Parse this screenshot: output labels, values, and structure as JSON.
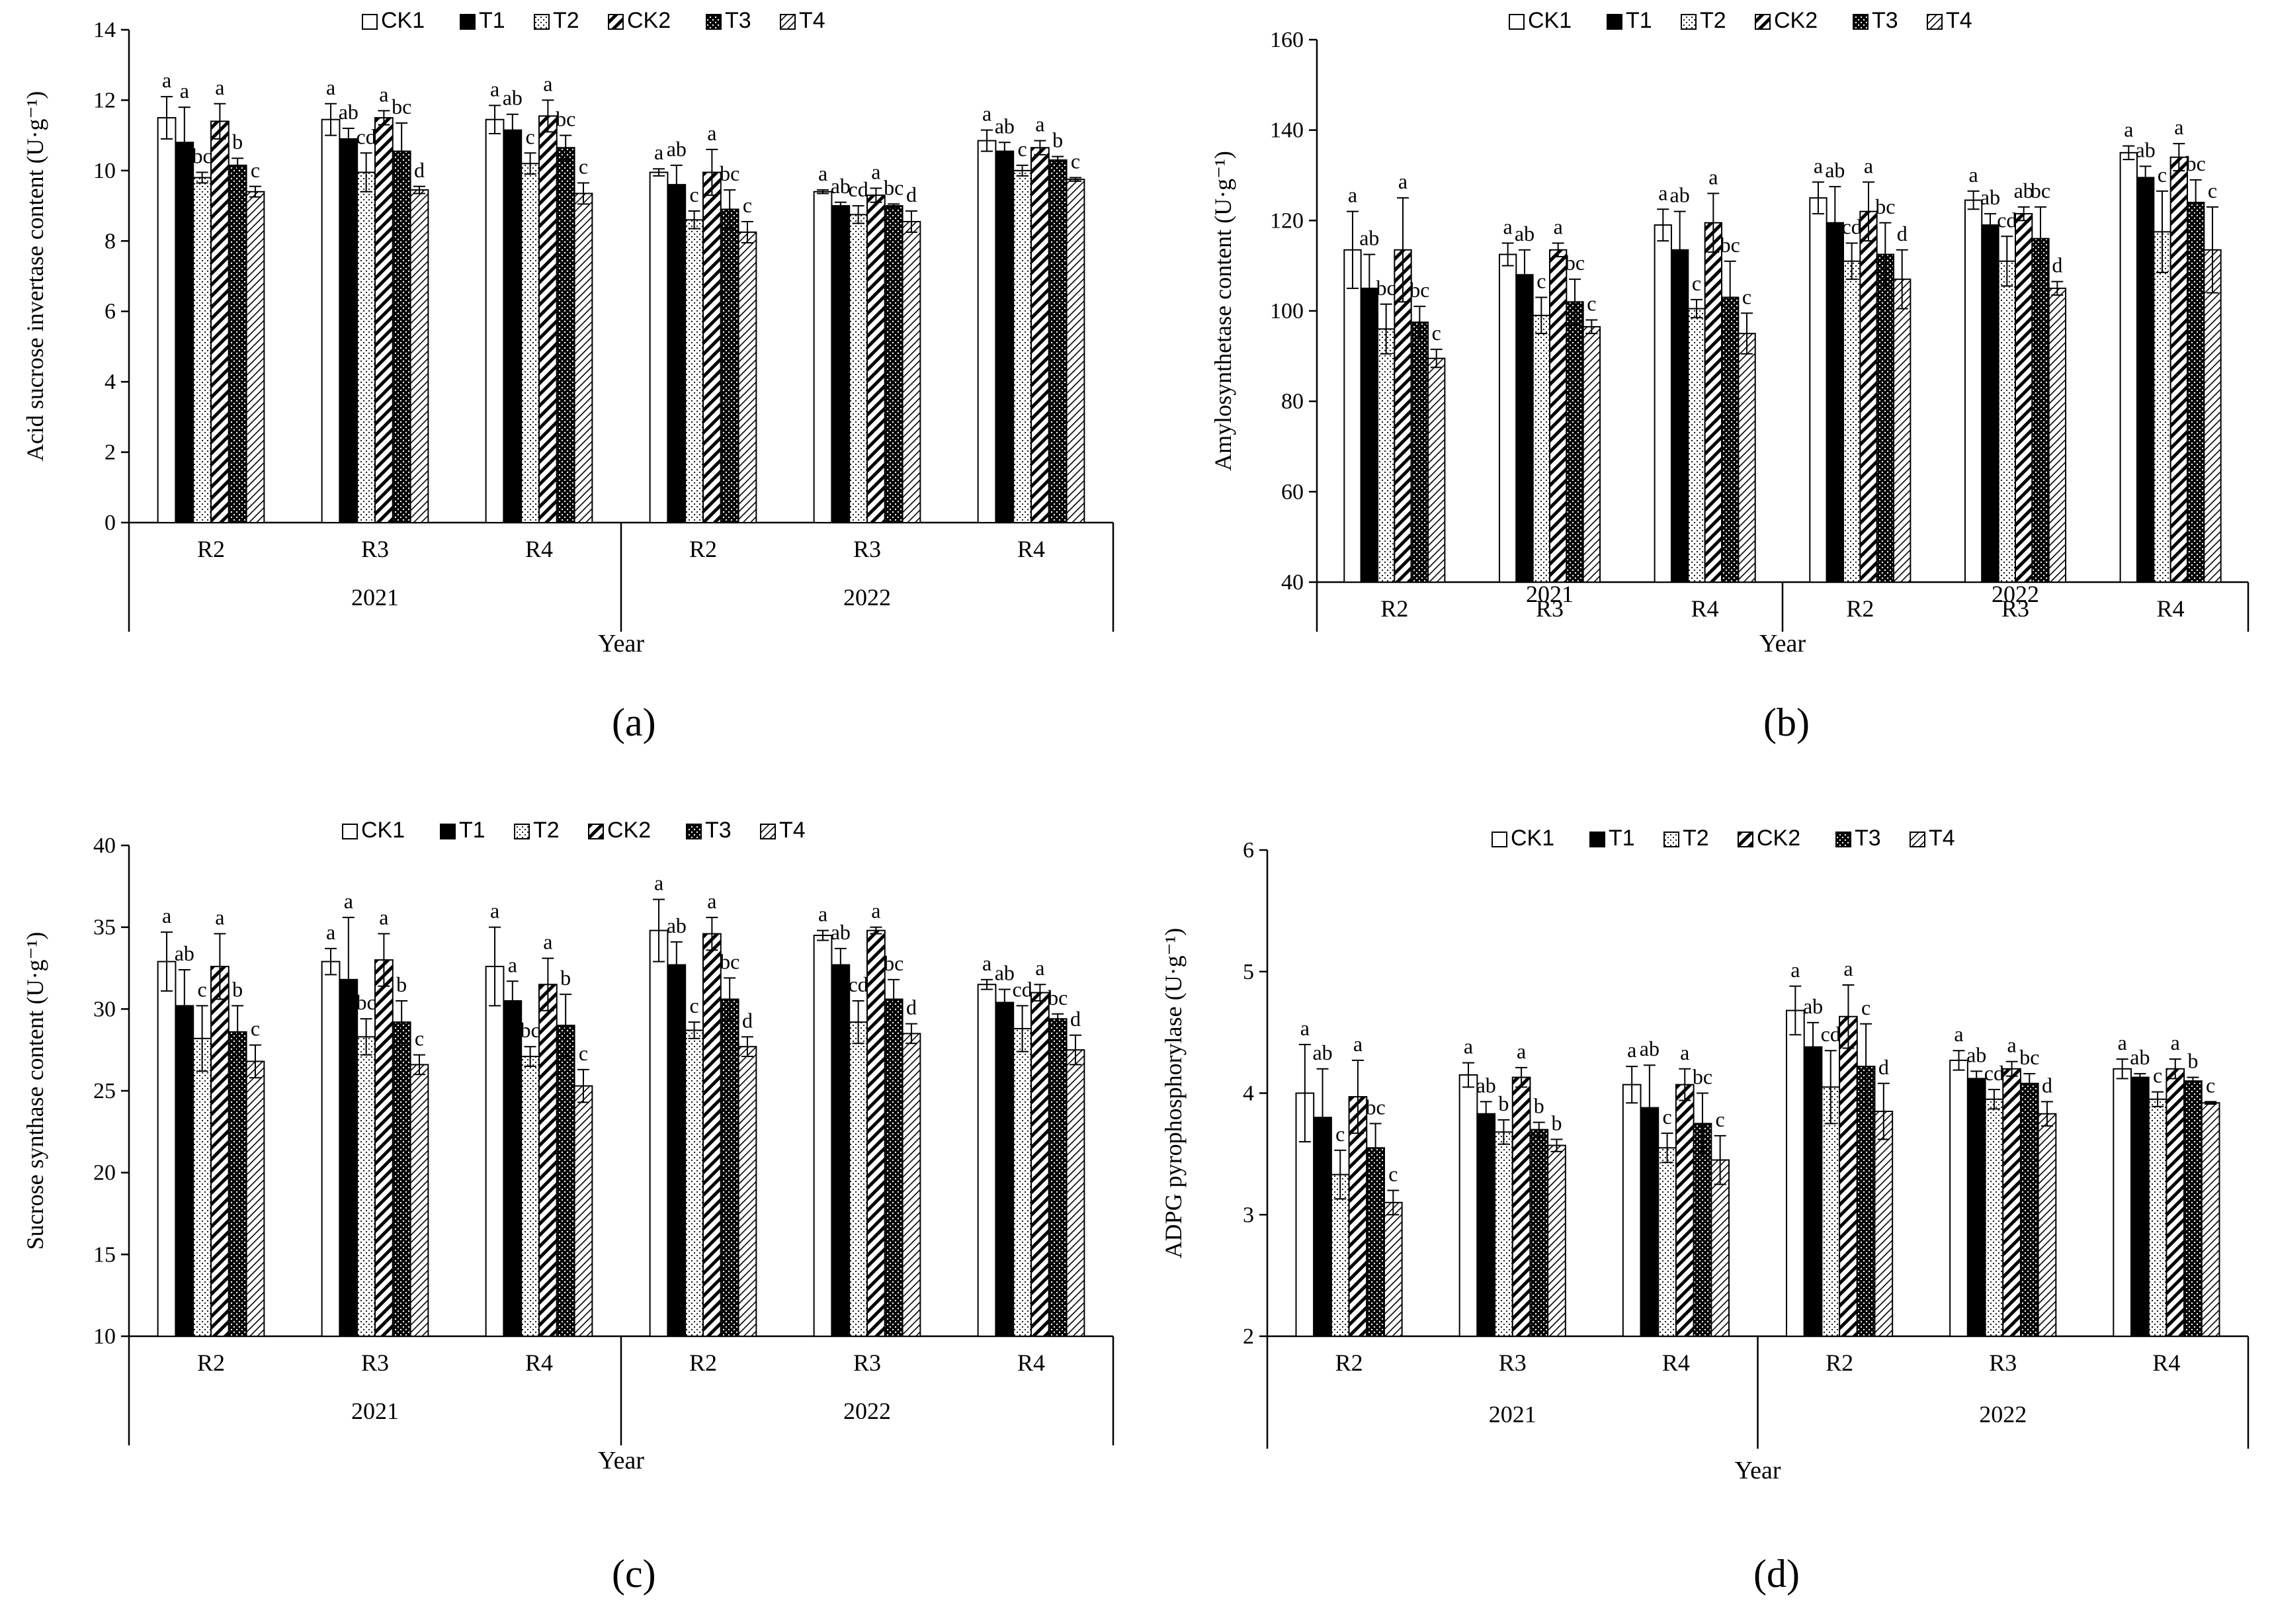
{
  "legend_labels": [
    "CK1",
    "T1",
    "T2",
    "CK2",
    "T3",
    "T4"
  ],
  "panels": [
    {
      "label": "(a)",
      "ylabel": "Acid sucrose invertase content (U·g⁻¹)"
    },
    {
      "label": "(b)",
      "ylabel": "Amylosynthetase content (U·g⁻¹)"
    },
    {
      "label": "(c)",
      "ylabel": "Sucrose synthase content (U·g⁻¹)"
    },
    {
      "label": "(d)",
      "ylabel": "ADPG pyrophosphorylase (U·g⁻¹)"
    }
  ],
  "chart_data": [
    {
      "type": "bar",
      "title": "",
      "ylabel": "Acid sucrose invertase content (U·g⁻¹)",
      "xlabel": "Year",
      "ylim": [
        0,
        14
      ],
      "yticks": [
        0,
        2,
        4,
        6,
        8,
        10,
        12,
        14
      ],
      "categories": [
        "R2",
        "R3",
        "R4",
        "R2",
        "R3",
        "R4"
      ],
      "years": [
        "2021",
        "2022"
      ],
      "series": [
        {
          "name": "CK1",
          "values": [
            11.5,
            11.45,
            11.45,
            9.95,
            9.4,
            10.85
          ],
          "errors": [
            0.6,
            0.45,
            0.4,
            0.1,
            0.05,
            0.3
          ],
          "letters": [
            "a",
            "a",
            "a",
            "a",
            "a",
            "a"
          ]
        },
        {
          "name": "T1",
          "values": [
            10.8,
            10.9,
            11.15,
            9.6,
            9.0,
            10.55
          ],
          "errors": [
            1.0,
            0.3,
            0.45,
            0.55,
            0.1,
            0.25
          ],
          "letters": [
            "a",
            "ab",
            "ab",
            "ab",
            "ab",
            "ab"
          ]
        },
        {
          "name": "T2",
          "values": [
            9.8,
            9.95,
            10.2,
            8.6,
            8.75,
            10.0
          ],
          "errors": [
            0.15,
            0.55,
            0.3,
            0.25,
            0.25,
            0.15
          ],
          "letters": [
            "bc",
            "cd",
            "c",
            "c",
            "cd",
            "c"
          ]
        },
        {
          "name": "CK2",
          "values": [
            11.4,
            11.5,
            11.55,
            9.95,
            9.3,
            10.65
          ],
          "errors": [
            0.5,
            0.2,
            0.45,
            0.65,
            0.2,
            0.2
          ],
          "letters": [
            "a",
            "a",
            "a",
            "a",
            "a",
            "a"
          ]
        },
        {
          "name": "T3",
          "values": [
            10.15,
            10.55,
            10.65,
            8.9,
            9.0,
            10.3
          ],
          "errors": [
            0.2,
            0.8,
            0.35,
            0.55,
            0.05,
            0.1
          ],
          "letters": [
            "b",
            "bc",
            "bc",
            "bc",
            "bc",
            "b"
          ]
        },
        {
          "name": "T4",
          "values": [
            9.4,
            9.45,
            9.35,
            8.25,
            8.55,
            9.75
          ],
          "errors": [
            0.15,
            0.1,
            0.3,
            0.3,
            0.3,
            0.05
          ],
          "letters": [
            "c",
            "d",
            "c",
            "c",
            "d",
            "c"
          ]
        }
      ]
    },
    {
      "type": "bar",
      "title": "",
      "ylabel": "Amylosynthetase content (U·g⁻¹)",
      "xlabel": "Year",
      "ylim": [
        40,
        160
      ],
      "yticks": [
        40,
        60,
        80,
        100,
        120,
        140,
        160
      ],
      "categories": [
        "R2",
        "R3",
        "R4",
        "R2",
        "R3",
        "R4"
      ],
      "years": [
        "2021",
        "2022"
      ],
      "series": [
        {
          "name": "CK1",
          "values": [
            113.5,
            112.5,
            119,
            125,
            124.5,
            135
          ],
          "errors": [
            8.5,
            2.5,
            3.5,
            3.5,
            2,
            1.5
          ],
          "letters": [
            "a",
            "a",
            "a",
            "a",
            "a",
            "a"
          ]
        },
        {
          "name": "T1",
          "values": [
            105,
            108,
            113.5,
            119.5,
            119,
            129.5
          ],
          "errors": [
            7.5,
            5.5,
            8.5,
            8,
            2.5,
            2.5
          ],
          "letters": [
            "ab",
            "ab",
            "ab",
            "ab",
            "ab",
            "ab"
          ]
        },
        {
          "name": "T2",
          "values": [
            96,
            99,
            100.5,
            111,
            111,
            117.5
          ],
          "errors": [
            5.5,
            4,
            2,
            4,
            5.5,
            9
          ],
          "letters": [
            "bc",
            "c",
            "c",
            "cd",
            "cd",
            "c"
          ]
        },
        {
          "name": "CK2",
          "values": [
            113.5,
            113.5,
            119.5,
            122,
            121.5,
            134
          ],
          "errors": [
            11.5,
            1.5,
            6.5,
            6.5,
            1.5,
            3
          ],
          "letters": [
            "a",
            "a",
            "a",
            "a",
            "ab",
            "a"
          ]
        },
        {
          "name": "T3",
          "values": [
            97.5,
            102,
            103,
            112.5,
            116,
            124
          ],
          "errors": [
            3.5,
            5,
            8,
            7,
            7,
            5
          ],
          "letters": [
            "bc",
            "bc",
            "bc",
            "bc",
            "bc",
            "bc"
          ]
        },
        {
          "name": "T4",
          "values": [
            89.5,
            96.5,
            95,
            107,
            105,
            113.5
          ],
          "errors": [
            2,
            1.5,
            4.5,
            6.5,
            1.5,
            9.5
          ],
          "letters": [
            "c",
            "c",
            "c",
            "d",
            "d",
            "c"
          ]
        }
      ]
    },
    {
      "type": "bar",
      "title": "",
      "ylabel": "Sucrose synthase content (U·g⁻¹)",
      "xlabel": "Year",
      "ylim": [
        10,
        40
      ],
      "yticks": [
        10,
        15,
        20,
        25,
        30,
        35,
        40
      ],
      "categories": [
        "R2",
        "R3",
        "R4",
        "R2",
        "R3",
        "R4"
      ],
      "years": [
        "2021",
        "2022"
      ],
      "series": [
        {
          "name": "CK1",
          "values": [
            32.9,
            32.9,
            32.6,
            34.8,
            34.5,
            31.5
          ],
          "errors": [
            1.8,
            0.8,
            2.4,
            1.9,
            0.3,
            0.3
          ],
          "letters": [
            "a",
            "a",
            "a",
            "a",
            "a",
            "a"
          ]
        },
        {
          "name": "T1",
          "values": [
            30.2,
            31.8,
            30.5,
            32.7,
            32.7,
            30.4
          ],
          "errors": [
            2.2,
            3.8,
            1.2,
            1.4,
            1.0,
            0.8
          ],
          "letters": [
            "ab",
            "a",
            "a",
            "ab",
            "ab",
            "ab"
          ]
        },
        {
          "name": "T2",
          "values": [
            28.2,
            28.3,
            27.1,
            28.7,
            29.2,
            28.8
          ],
          "errors": [
            2.0,
            1.1,
            0.6,
            0.5,
            1.3,
            1.4
          ],
          "letters": [
            "c",
            "bc",
            "bc",
            "c",
            "cd",
            "cd"
          ]
        },
        {
          "name": "CK2",
          "values": [
            32.6,
            33.0,
            31.5,
            34.6,
            34.8,
            31.0
          ],
          "errors": [
            2.0,
            1.6,
            1.6,
            1.0,
            0.2,
            0.5
          ],
          "letters": [
            "a",
            "a",
            "a",
            "a",
            "a",
            "a"
          ]
        },
        {
          "name": "T3",
          "values": [
            28.6,
            29.2,
            29.0,
            30.6,
            30.6,
            29.4
          ],
          "errors": [
            1.6,
            1.3,
            1.9,
            1.3,
            1.2,
            0.3
          ],
          "letters": [
            "b",
            "b",
            "b",
            "bc",
            "bc",
            "bc"
          ]
        },
        {
          "name": "T4",
          "values": [
            26.8,
            26.6,
            25.3,
            27.7,
            28.5,
            27.5
          ],
          "errors": [
            1.0,
            0.6,
            1.0,
            0.6,
            0.6,
            0.9
          ],
          "letters": [
            "c",
            "c",
            "c",
            "d",
            "d",
            "d"
          ]
        }
      ]
    },
    {
      "type": "bar",
      "title": "",
      "ylabel": "ADPG pyrophosphorylase (U·g⁻¹)",
      "xlabel": "Year",
      "ylim": [
        2,
        6
      ],
      "yticks": [
        2,
        3,
        4,
        5,
        6
      ],
      "categories": [
        "R2",
        "R3",
        "R4",
        "R2",
        "R3",
        "R4"
      ],
      "years": [
        "2021",
        "2022"
      ],
      "series": [
        {
          "name": "CK1",
          "values": [
            4.0,
            4.15,
            4.07,
            4.68,
            4.27,
            4.2
          ],
          "errors": [
            0.4,
            0.1,
            0.15,
            0.2,
            0.08,
            0.08
          ],
          "letters": [
            "a",
            "a",
            "a",
            "a",
            "a",
            "a"
          ]
        },
        {
          "name": "T1",
          "values": [
            3.8,
            3.83,
            3.88,
            4.38,
            4.12,
            4.13
          ],
          "errors": [
            0.4,
            0.1,
            0.35,
            0.2,
            0.06,
            0.03
          ],
          "letters": [
            "ab",
            "ab",
            "ab",
            "ab",
            "ab",
            "ab"
          ]
        },
        {
          "name": "T2",
          "values": [
            3.33,
            3.68,
            3.55,
            4.05,
            3.95,
            3.95
          ],
          "errors": [
            0.2,
            0.1,
            0.12,
            0.3,
            0.08,
            0.06
          ],
          "letters": [
            "c",
            "b",
            "c",
            "cd",
            "cd",
            "c"
          ]
        },
        {
          "name": "CK2",
          "values": [
            3.97,
            4.13,
            4.07,
            4.63,
            4.2,
            4.2
          ],
          "errors": [
            0.3,
            0.08,
            0.13,
            0.26,
            0.06,
            0.08
          ],
          "letters": [
            "a",
            "a",
            "a",
            "a",
            "a",
            "a"
          ]
        },
        {
          "name": "T3",
          "values": [
            3.55,
            3.7,
            3.75,
            4.22,
            4.08,
            4.1
          ],
          "errors": [
            0.2,
            0.06,
            0.25,
            0.35,
            0.08,
            0.03
          ],
          "letters": [
            "bc",
            "b",
            "bc",
            "c",
            "bc",
            "b"
          ]
        },
        {
          "name": "T4",
          "values": [
            3.1,
            3.57,
            3.45,
            3.85,
            3.83,
            3.92
          ],
          "errors": [
            0.1,
            0.05,
            0.2,
            0.23,
            0.1,
            0.01
          ],
          "letters": [
            "c",
            "b",
            "c",
            "d",
            "d",
            "c"
          ]
        }
      ]
    }
  ]
}
